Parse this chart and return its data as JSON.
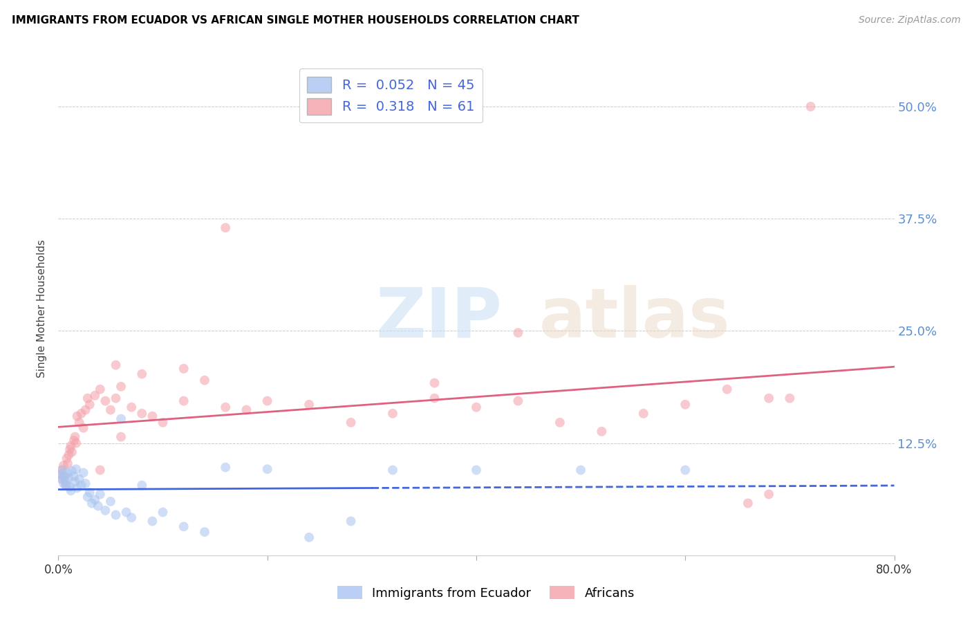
{
  "title": "IMMIGRANTS FROM ECUADOR VS AFRICAN SINGLE MOTHER HOUSEHOLDS CORRELATION CHART",
  "source": "Source: ZipAtlas.com",
  "ylabel": "Single Mother Households",
  "yticks": [
    0.0,
    0.125,
    0.25,
    0.375,
    0.5
  ],
  "ytick_labels": [
    "",
    "12.5%",
    "25.0%",
    "37.5%",
    "50.0%"
  ],
  "xlim": [
    0.0,
    0.8
  ],
  "ylim": [
    0.0,
    0.55
  ],
  "legend_R1": "0.052",
  "legend_N1": "45",
  "legend_R2": "0.318",
  "legend_N2": "61",
  "color_ecuador": "#a8c4f0",
  "color_african": "#f4a0a8",
  "trendline_ecuador_color": "#4466dd",
  "trendline_african_color": "#e06080",
  "ecuador_x": [
    0.002,
    0.003,
    0.004,
    0.005,
    0.006,
    0.007,
    0.008,
    0.009,
    0.01,
    0.011,
    0.012,
    0.013,
    0.015,
    0.016,
    0.017,
    0.018,
    0.02,
    0.022,
    0.024,
    0.026,
    0.028,
    0.03,
    0.032,
    0.035,
    0.038,
    0.04,
    0.045,
    0.05,
    0.055,
    0.06,
    0.065,
    0.07,
    0.08,
    0.09,
    0.1,
    0.12,
    0.14,
    0.16,
    0.2,
    0.24,
    0.28,
    0.32,
    0.4,
    0.5,
    0.6
  ],
  "ecuador_y": [
    0.09,
    0.085,
    0.095,
    0.08,
    0.088,
    0.082,
    0.078,
    0.092,
    0.086,
    0.076,
    0.072,
    0.094,
    0.088,
    0.082,
    0.096,
    0.075,
    0.085,
    0.078,
    0.092,
    0.08,
    0.065,
    0.07,
    0.058,
    0.062,
    0.055,
    0.068,
    0.05,
    0.06,
    0.045,
    0.152,
    0.048,
    0.042,
    0.078,
    0.038,
    0.048,
    0.032,
    0.026,
    0.098,
    0.096,
    0.02,
    0.038,
    0.095,
    0.095,
    0.095,
    0.095
  ],
  "african_x": [
    0.002,
    0.003,
    0.004,
    0.005,
    0.006,
    0.007,
    0.008,
    0.009,
    0.01,
    0.011,
    0.012,
    0.013,
    0.015,
    0.016,
    0.017,
    0.018,
    0.02,
    0.022,
    0.024,
    0.026,
    0.028,
    0.03,
    0.035,
    0.04,
    0.045,
    0.05,
    0.055,
    0.06,
    0.07,
    0.08,
    0.09,
    0.1,
    0.12,
    0.14,
    0.16,
    0.18,
    0.2,
    0.24,
    0.28,
    0.32,
    0.36,
    0.4,
    0.44,
    0.48,
    0.52,
    0.56,
    0.6,
    0.64,
    0.68,
    0.16,
    0.055,
    0.36,
    0.44,
    0.66,
    0.68,
    0.7,
    0.12,
    0.08,
    0.06,
    0.04,
    0.72
  ],
  "african_y": [
    0.09,
    0.095,
    0.085,
    0.1,
    0.088,
    0.078,
    0.108,
    0.102,
    0.112,
    0.118,
    0.122,
    0.115,
    0.128,
    0.132,
    0.125,
    0.155,
    0.148,
    0.158,
    0.142,
    0.162,
    0.175,
    0.168,
    0.178,
    0.185,
    0.172,
    0.162,
    0.175,
    0.188,
    0.165,
    0.158,
    0.155,
    0.148,
    0.172,
    0.195,
    0.165,
    0.162,
    0.172,
    0.168,
    0.148,
    0.158,
    0.175,
    0.165,
    0.172,
    0.148,
    0.138,
    0.158,
    0.168,
    0.185,
    0.175,
    0.365,
    0.212,
    0.192,
    0.248,
    0.058,
    0.068,
    0.175,
    0.208,
    0.202,
    0.132,
    0.095,
    0.5
  ]
}
